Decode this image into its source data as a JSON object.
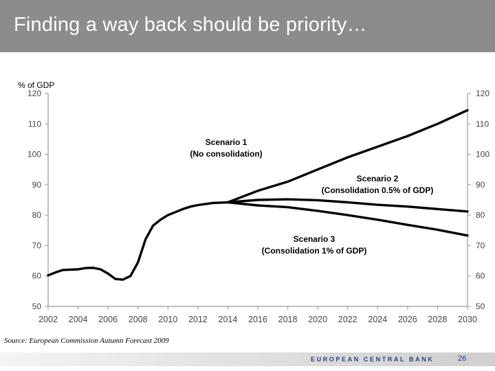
{
  "slide": {
    "title": "Finding a way back should be priority…",
    "source": "Source: European Commission Autumn Forecast 2009",
    "footer_bank": "EUROPEAN CENTRAL BANK",
    "page_number": "26"
  },
  "chart_data": {
    "type": "line",
    "ylabel": "% of GDP",
    "ylim": [
      50,
      120
    ],
    "yticks": [
      50,
      60,
      70,
      80,
      90,
      100,
      110,
      120
    ],
    "xlim": [
      2002,
      2030
    ],
    "xticks": [
      2002,
      2004,
      2006,
      2008,
      2010,
      2012,
      2014,
      2016,
      2018,
      2020,
      2022,
      2024,
      2026,
      2028,
      2030
    ],
    "history": {
      "x": [
        2002,
        2002.5,
        2003,
        2004,
        2004.5,
        2005,
        2005.5,
        2006,
        2006.5,
        2007,
        2007.5,
        2008,
        2008.5,
        2009,
        2009.5,
        2010,
        2010.5,
        2011,
        2011.5,
        2012,
        2013,
        2014
      ],
      "y": [
        60.2,
        61.2,
        62,
        62.2,
        62.6,
        62.7,
        62.2,
        60.8,
        59,
        58.8,
        60,
        64.5,
        72,
        76.5,
        78.5,
        80,
        81,
        82,
        82.8,
        83.3,
        84,
        84.2
      ]
    },
    "series": [
      {
        "name": "Scenario 1",
        "label_line1": "Scenario 1",
        "label_line2": "(No consolidation)",
        "x": [
          2014,
          2016,
          2018,
          2020,
          2022,
          2024,
          2026,
          2028,
          2030
        ],
        "y": [
          84.2,
          88,
          91,
          95,
          99,
          102.5,
          106,
          110,
          114.5
        ]
      },
      {
        "name": "Scenario 2",
        "label_line1": "Scenario 2",
        "label_line2": "(Consolidation 0.5% of GDP)",
        "x": [
          2014,
          2016,
          2018,
          2020,
          2022,
          2024,
          2026,
          2028,
          2030
        ],
        "y": [
          84.2,
          85,
          85.2,
          84.9,
          84.2,
          83.4,
          82.8,
          82,
          81.2
        ]
      },
      {
        "name": "Scenario 3",
        "label_line1": "Scenario 3",
        "label_line2": "(Consolidation 1% of GDP)",
        "x": [
          2014,
          2016,
          2018,
          2020,
          2022,
          2024,
          2026,
          2028,
          2030
        ],
        "y": [
          84.2,
          83.2,
          82.6,
          81.4,
          80,
          78.5,
          76.8,
          75.2,
          73.3
        ]
      }
    ]
  }
}
